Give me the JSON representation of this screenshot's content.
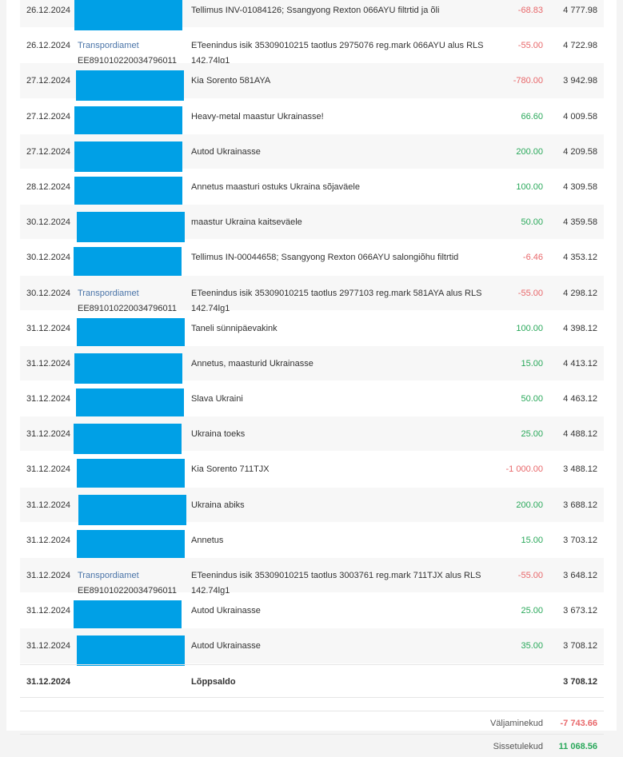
{
  "rows": [
    {
      "date": "26.12.2024",
      "payer": null,
      "account": null,
      "desc": "Tellimus INV-01084126; Ssangyong Rexton 066AYU filtrtid ja õli",
      "amount": "-68.83",
      "balance": "4 777.98",
      "sign": "neg"
    },
    {
      "date": "26.12.2024",
      "payer": "Transpordiamet",
      "account": "EE891010220034796011",
      "desc": "ETeenindus isik 35309010215 taotlus 2975076 reg.mark 066AYU alus RLS 142.74lg1",
      "amount": "-55.00",
      "balance": "4 722.98",
      "sign": "neg"
    },
    {
      "date": "27.12.2024",
      "payer": null,
      "account": null,
      "desc": "Kia Sorento 581AYA",
      "amount": "-780.00",
      "balance": "3 942.98",
      "sign": "neg"
    },
    {
      "date": "27.12.2024",
      "payer": null,
      "account": null,
      "desc": "Heavy-metal maastur Ukrainasse!",
      "amount": "66.60",
      "balance": "4 009.58",
      "sign": "pos"
    },
    {
      "date": "27.12.2024",
      "payer": null,
      "account": null,
      "desc": "Autod Ukrainasse",
      "amount": "200.00",
      "balance": "4 209.58",
      "sign": "pos"
    },
    {
      "date": "28.12.2024",
      "payer": null,
      "account": null,
      "desc": "Annetus maasturi ostuks Ukraina sõjaväele",
      "amount": "100.00",
      "balance": "4 309.58",
      "sign": "pos"
    },
    {
      "date": "30.12.2024",
      "payer": null,
      "account": null,
      "desc": "maastur Ukraina kaitseväele",
      "amount": "50.00",
      "balance": "4 359.58",
      "sign": "pos"
    },
    {
      "date": "30.12.2024",
      "payer": null,
      "account": null,
      "desc": "Tellimus IN-00044658; Ssangyong Rexton 066AYU salongiõhu filtrtid",
      "amount": "-6.46",
      "balance": "4 353.12",
      "sign": "neg"
    },
    {
      "date": "30.12.2024",
      "payer": "Transpordiamet",
      "account": "EE891010220034796011",
      "desc": "ETeenindus isik 35309010215 taotlus 2977103 reg.mark 581AYA alus RLS 142.74lg1",
      "amount": "-55.00",
      "balance": "4 298.12",
      "sign": "neg"
    },
    {
      "date": "31.12.2024",
      "payer": null,
      "account": null,
      "desc": "Taneli sünnipäevakink",
      "amount": "100.00",
      "balance": "4 398.12",
      "sign": "pos"
    },
    {
      "date": "31.12.2024",
      "payer": null,
      "account": null,
      "desc": "Annetus, maasturid Ukrainasse",
      "amount": "15.00",
      "balance": "4 413.12",
      "sign": "pos"
    },
    {
      "date": "31.12.2024",
      "payer": null,
      "account": null,
      "desc": "Slava Ukraini",
      "amount": "50.00",
      "balance": "4 463.12",
      "sign": "pos"
    },
    {
      "date": "31.12.2024",
      "payer": null,
      "account": null,
      "desc": "Ukraina toeks",
      "amount": "25.00",
      "balance": "4 488.12",
      "sign": "pos"
    },
    {
      "date": "31.12.2024",
      "payer": null,
      "account": null,
      "desc": "Kia Sorento 711TJX",
      "amount": "-1 000.00",
      "balance": "3 488.12",
      "sign": "neg"
    },
    {
      "date": "31.12.2024",
      "payer": null,
      "account": null,
      "desc": "Ukraina abiks",
      "amount": "200.00",
      "balance": "3 688.12",
      "sign": "pos"
    },
    {
      "date": "31.12.2024",
      "payer": null,
      "account": null,
      "desc": "Annetus",
      "amount": "15.00",
      "balance": "3 703.12",
      "sign": "pos"
    },
    {
      "date": "31.12.2024",
      "payer": "Transpordiamet",
      "account": "EE891010220034796011",
      "desc": "ETeenindus isik 35309010215 taotlus 3003761 reg.mark 711TJX alus RLS 142.74lg1",
      "amount": "-55.00",
      "balance": "3 648.12",
      "sign": "neg"
    },
    {
      "date": "31.12.2024",
      "payer": null,
      "account": null,
      "desc": "Autod Ukrainasse",
      "amount": "25.00",
      "balance": "3 673.12",
      "sign": "pos"
    },
    {
      "date": "31.12.2024",
      "payer": null,
      "account": null,
      "desc": "Autod Ukrainasse",
      "amount": "35.00",
      "balance": "3 708.12",
      "sign": "pos"
    }
  ],
  "final": {
    "date": "31.12.2024",
    "label": "Lõppsaldo",
    "balance": "3 708.12"
  },
  "summary": {
    "out_label": "Väljaminekud",
    "out_value": "-7 743.66",
    "in_label": "Sissetulekud",
    "in_value": "11 068.56"
  },
  "colors": {
    "redaction": "#00a0e6",
    "negative": "#e8676a",
    "positive": "#29a85a",
    "link": "#4a74a8"
  }
}
